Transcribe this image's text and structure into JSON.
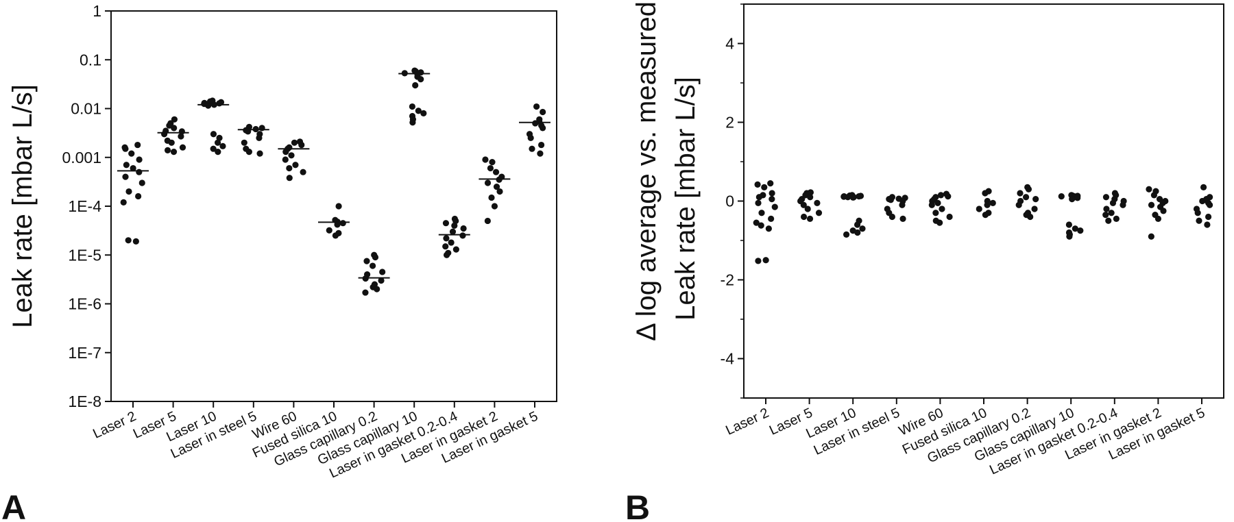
{
  "chart_data": [
    {
      "panel": "A",
      "type": "scatter",
      "yscale": "log",
      "ylabel": "Leak rate [mbar L/s]",
      "ylim": [
        1e-08,
        1
      ],
      "ytick_values": [
        1e-08,
        1e-07,
        1e-06,
        1e-05,
        0.0001,
        0.001,
        0.01,
        0.1,
        1
      ],
      "ytick_labels": [
        "1E-8",
        "1E-7",
        "1E-6",
        "1E-5",
        "1E-4",
        "0.001",
        "0.01",
        "0.1",
        "1"
      ],
      "categories": [
        "Laser 2",
        "Laser 5",
        "Laser 10",
        "Laser in steel  5",
        "Wire 60",
        "Fused silica 10",
        "Glass capillary 0.2",
        "Glass capillary 10",
        "Laser in gasket 0.2-0.4",
        "Laser in gasket 2",
        "Laser in gasket 5"
      ],
      "means": [
        0.00053,
        0.0032,
        0.012,
        0.0037,
        0.0015,
        4.7e-05,
        3.4e-06,
        0.052,
        2.6e-05,
        0.00036,
        0.0052
      ],
      "points": [
        [
          0.0018,
          0.0016,
          0.0012,
          0.0009,
          0.0007,
          0.0005,
          0.0004,
          0.0003,
          0.0002,
          0.00016,
          0.00012,
          2e-05,
          1.9e-05,
          0.0006,
          0.0015
        ],
        [
          0.006,
          0.005,
          0.0045,
          0.004,
          0.0035,
          0.003,
          0.0027,
          0.0022,
          0.002,
          0.0016,
          0.0014,
          0.0013,
          0.0034
        ],
        [
          0.0145,
          0.014,
          0.0135,
          0.013,
          0.0128,
          0.0125,
          0.012,
          0.0115,
          0.003,
          0.0025,
          0.002,
          0.0017,
          0.0015,
          0.0013
        ],
        [
          0.0042,
          0.004,
          0.0038,
          0.0036,
          0.0035,
          0.003,
          0.0025,
          0.002,
          0.0015,
          0.0013,
          0.0012,
          0.0034
        ],
        [
          0.0021,
          0.002,
          0.0018,
          0.0016,
          0.0015,
          0.0013,
          0.0011,
          0.0009,
          0.0007,
          0.0006,
          0.0005,
          0.00038
        ],
        [
          0.0001,
          5.2e-05,
          4.8e-05,
          4.5e-05,
          4.2e-05,
          3.2e-05,
          2.8e-05,
          2.5e-05
        ],
        [
          1e-05,
          9e-06,
          7.5e-06,
          6e-06,
          4.5e-06,
          4e-06,
          3.3e-06,
          3e-06,
          2.5e-06,
          2.2e-06,
          2e-06,
          1.7e-06
        ],
        [
          0.06,
          0.058,
          0.055,
          0.053,
          0.05,
          0.045,
          0.04,
          0.03,
          0.011,
          0.009,
          0.008,
          0.007,
          0.006,
          0.0052
        ],
        [
          5.5e-05,
          5e-05,
          4.5e-05,
          4e-05,
          3.5e-05,
          3e-05,
          2.5e-05,
          2.2e-05,
          1.8e-05,
          1.5e-05,
          1.3e-05,
          1.1e-05,
          1e-05
        ],
        [
          0.0009,
          0.0008,
          0.0006,
          0.0005,
          0.0004,
          0.00035,
          0.0003,
          0.00025,
          0.0002,
          0.00015,
          0.0001,
          5e-05
        ],
        [
          0.011,
          0.0085,
          0.006,
          0.0055,
          0.005,
          0.0045,
          0.004,
          0.003,
          0.0025,
          0.0018,
          0.0015,
          0.0012
        ]
      ]
    },
    {
      "panel": "B",
      "type": "scatter",
      "ylabel_line1": "Δ log average vs. measured",
      "ylabel_line2": "Leak rate [mbar L/s]",
      "ylim": [
        -5,
        5
      ],
      "ytick_values": [
        -4,
        -2,
        0,
        2,
        4
      ],
      "ytick_labels": [
        "-4",
        "-2",
        "0",
        "2",
        "4"
      ],
      "categories": [
        "Laser 2",
        "Laser 5",
        "Laser 10",
        "Laser in steel  5",
        "Wire 60",
        "Fused silica 10",
        "Glass capillary 0.2",
        "Glass capillary 10",
        "Laser in gasket 0.2-0.4",
        "Laser in gasket 2",
        "Laser in gasket 5"
      ],
      "points": [
        [
          0.45,
          0.42,
          0.35,
          0.2,
          0.1,
          0.05,
          -0.05,
          -0.15,
          -0.3,
          -0.45,
          -0.55,
          -0.62,
          -0.7,
          -1.5,
          -1.52,
          0.15
        ],
        [
          0.22,
          0.2,
          0.15,
          0.1,
          0.05,
          0.0,
          -0.05,
          -0.1,
          -0.2,
          -0.3,
          -0.4,
          -0.45
        ],
        [
          0.15,
          0.14,
          0.13,
          0.12,
          0.12,
          0.11,
          0.1,
          0.1,
          0.09,
          -0.5,
          -0.6,
          -0.7,
          -0.75,
          -0.8,
          -0.85
        ],
        [
          0.1,
          0.08,
          0.06,
          0.05,
          0.03,
          0.0,
          -0.1,
          -0.2,
          -0.3,
          -0.4,
          -0.45
        ],
        [
          0.18,
          0.15,
          0.12,
          0.1,
          0.05,
          0.0,
          -0.05,
          -0.1,
          -0.2,
          -0.3,
          -0.4,
          -0.5,
          -0.55
        ],
        [
          0.25,
          0.2,
          0.0,
          -0.05,
          -0.1,
          -0.2,
          -0.3,
          -0.35
        ],
        [
          0.35,
          0.3,
          0.2,
          0.1,
          0.05,
          0.0,
          -0.1,
          -0.2,
          -0.3,
          -0.35,
          -0.4
        ],
        [
          0.15,
          0.14,
          0.13,
          0.12,
          0.12,
          0.1,
          0.08,
          0.05,
          -0.6,
          -0.7,
          -0.75,
          -0.8,
          -0.85,
          -0.9
        ],
        [
          0.2,
          0.15,
          0.1,
          0.05,
          0.0,
          -0.05,
          -0.1,
          -0.2,
          -0.3,
          -0.35,
          -0.45,
          -0.5
        ],
        [
          0.3,
          0.25,
          0.15,
          0.05,
          0.0,
          -0.05,
          -0.1,
          -0.15,
          -0.25,
          -0.35,
          -0.45,
          -0.9
        ],
        [
          0.35,
          0.1,
          0.05,
          0.02,
          0.0,
          -0.05,
          -0.1,
          -0.2,
          -0.3,
          -0.4,
          -0.5,
          -0.6
        ]
      ]
    }
  ],
  "labels": {
    "panel_a": "A",
    "panel_b": "B"
  }
}
